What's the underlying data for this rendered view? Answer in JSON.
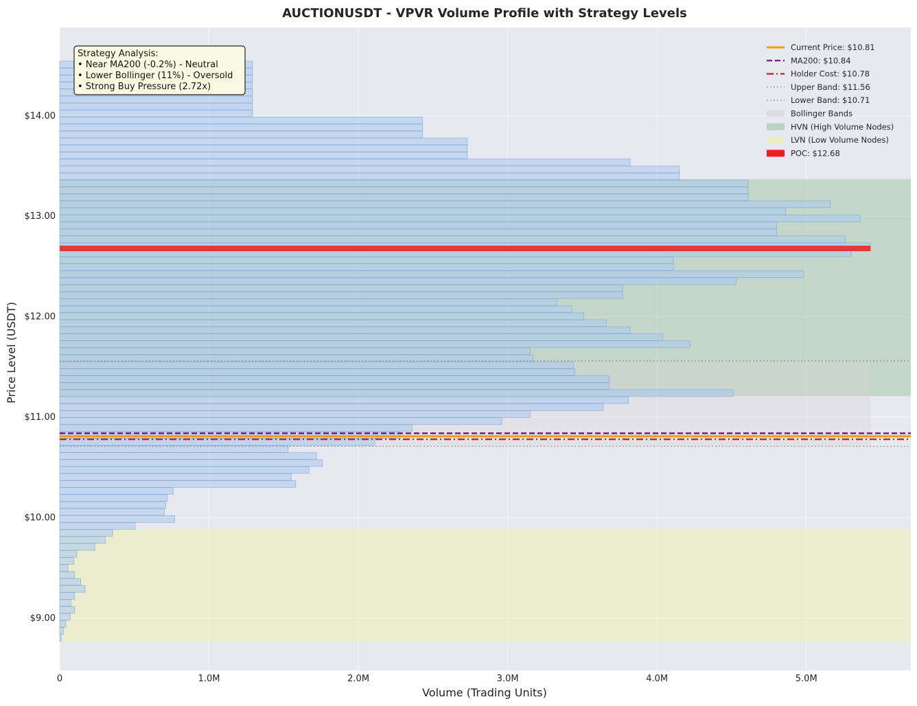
{
  "chart_data": {
    "type": "bar",
    "orientation": "horizontal",
    "title": "AUCTIONUSDT - VPVR Volume Profile with Strategy Levels",
    "xlabel": "Volume (Trading Units)",
    "ylabel": "Price Level (USDT)",
    "xlim": [
      0,
      5700000
    ],
    "ylim": [
      8.48,
      14.88
    ],
    "xticks": [
      {
        "value": 0,
        "label": "0"
      },
      {
        "value": 1000000,
        "label": "1.0M"
      },
      {
        "value": 2000000,
        "label": "2.0M"
      },
      {
        "value": 3000000,
        "label": "3.0M"
      },
      {
        "value": 4000000,
        "label": "4.0M"
      },
      {
        "value": 5000000,
        "label": "5.0M"
      }
    ],
    "yticks": [
      {
        "value": 9,
        "label": "$9.00"
      },
      {
        "value": 10,
        "label": "$10.00"
      },
      {
        "value": 11,
        "label": "$11.00"
      },
      {
        "value": 12,
        "label": "$12.00"
      },
      {
        "value": 13,
        "label": "$13.00"
      },
      {
        "value": 14,
        "label": "$14.00"
      }
    ],
    "grid": true,
    "legend_position": "top-right",
    "bins": {
      "start_price": 8.77,
      "step": 0.0696,
      "volumes": [
        10000,
        25000,
        40000,
        70000,
        100000,
        75000,
        100000,
        170000,
        140000,
        100000,
        55000,
        95000,
        115000,
        235000,
        305000,
        355000,
        505000,
        770000,
        700000,
        710000,
        720000,
        760000,
        1580000,
        1550000,
        1670000,
        1760000,
        1720000,
        1530000,
        2110000,
        2280000,
        2360000,
        2960000,
        3150000,
        3640000,
        3810000,
        4510000,
        3680000,
        3680000,
        3450000,
        3440000,
        3170000,
        3150000,
        4220000,
        4040000,
        3820000,
        3660000,
        3510000,
        3430000,
        3330000,
        3770000,
        3770000,
        4530000,
        4980000,
        4110000,
        4110000,
        5300000,
        5430000,
        5260000,
        4800000,
        4800000,
        5360000,
        4860000,
        5160000,
        4610000,
        4610000,
        4610000,
        4150000,
        4150000,
        3820000,
        2730000,
        2730000,
        2730000,
        2430000,
        2430000,
        2430000,
        1290000,
        1290000,
        1290000,
        1290000,
        1290000,
        1290000,
        1290000,
        1290000
      ]
    },
    "levels": [
      {
        "name": "Current Price: $10.81",
        "price": 10.81,
        "color": "#f39c12",
        "style": "solid"
      },
      {
        "name": "MA200: $10.84",
        "price": 10.84,
        "color": "#7b0080",
        "style": "dashed"
      },
      {
        "name": "Holder Cost: $10.78",
        "price": 10.78,
        "color": "#b22222",
        "style": "dashdot"
      },
      {
        "name": "Upper Band: $11.56",
        "price": 11.56,
        "color": "#999999",
        "style": "dotted"
      },
      {
        "name": "Lower Band: $10.71",
        "price": 10.71,
        "color": "#999999",
        "style": "dotted"
      }
    ],
    "bollinger": {
      "label": "Bollinger Bands",
      "upper": 11.56,
      "lower": 10.71,
      "color": "#d3d3d3"
    },
    "hvn": {
      "label": "HVN (High Volume Nodes)",
      "from": 11.21,
      "to": 13.37,
      "color": "#8fbc8f"
    },
    "lvn": {
      "label": "LVN (Low Volume Nodes)",
      "from": 8.76,
      "to": 9.89,
      "color": "#f0f0b0"
    },
    "poc": {
      "label": "POC: $12.68",
      "price": 12.68,
      "volume": 5430000,
      "color": "#ee1c1c"
    },
    "colors": {
      "bar_fill": "#aecbef",
      "bar_edge": "#7ba3d6",
      "plot_bg": "#e8e8f1",
      "grid": "#f7f7fa"
    },
    "annotation": {
      "title": "Strategy Analysis:",
      "lines": [
        "• Near MA200 (-0.2%) - Neutral",
        "• Lower Bollinger (11%) - Oversold",
        "• Strong Buy Pressure (2.72x)"
      ]
    }
  }
}
